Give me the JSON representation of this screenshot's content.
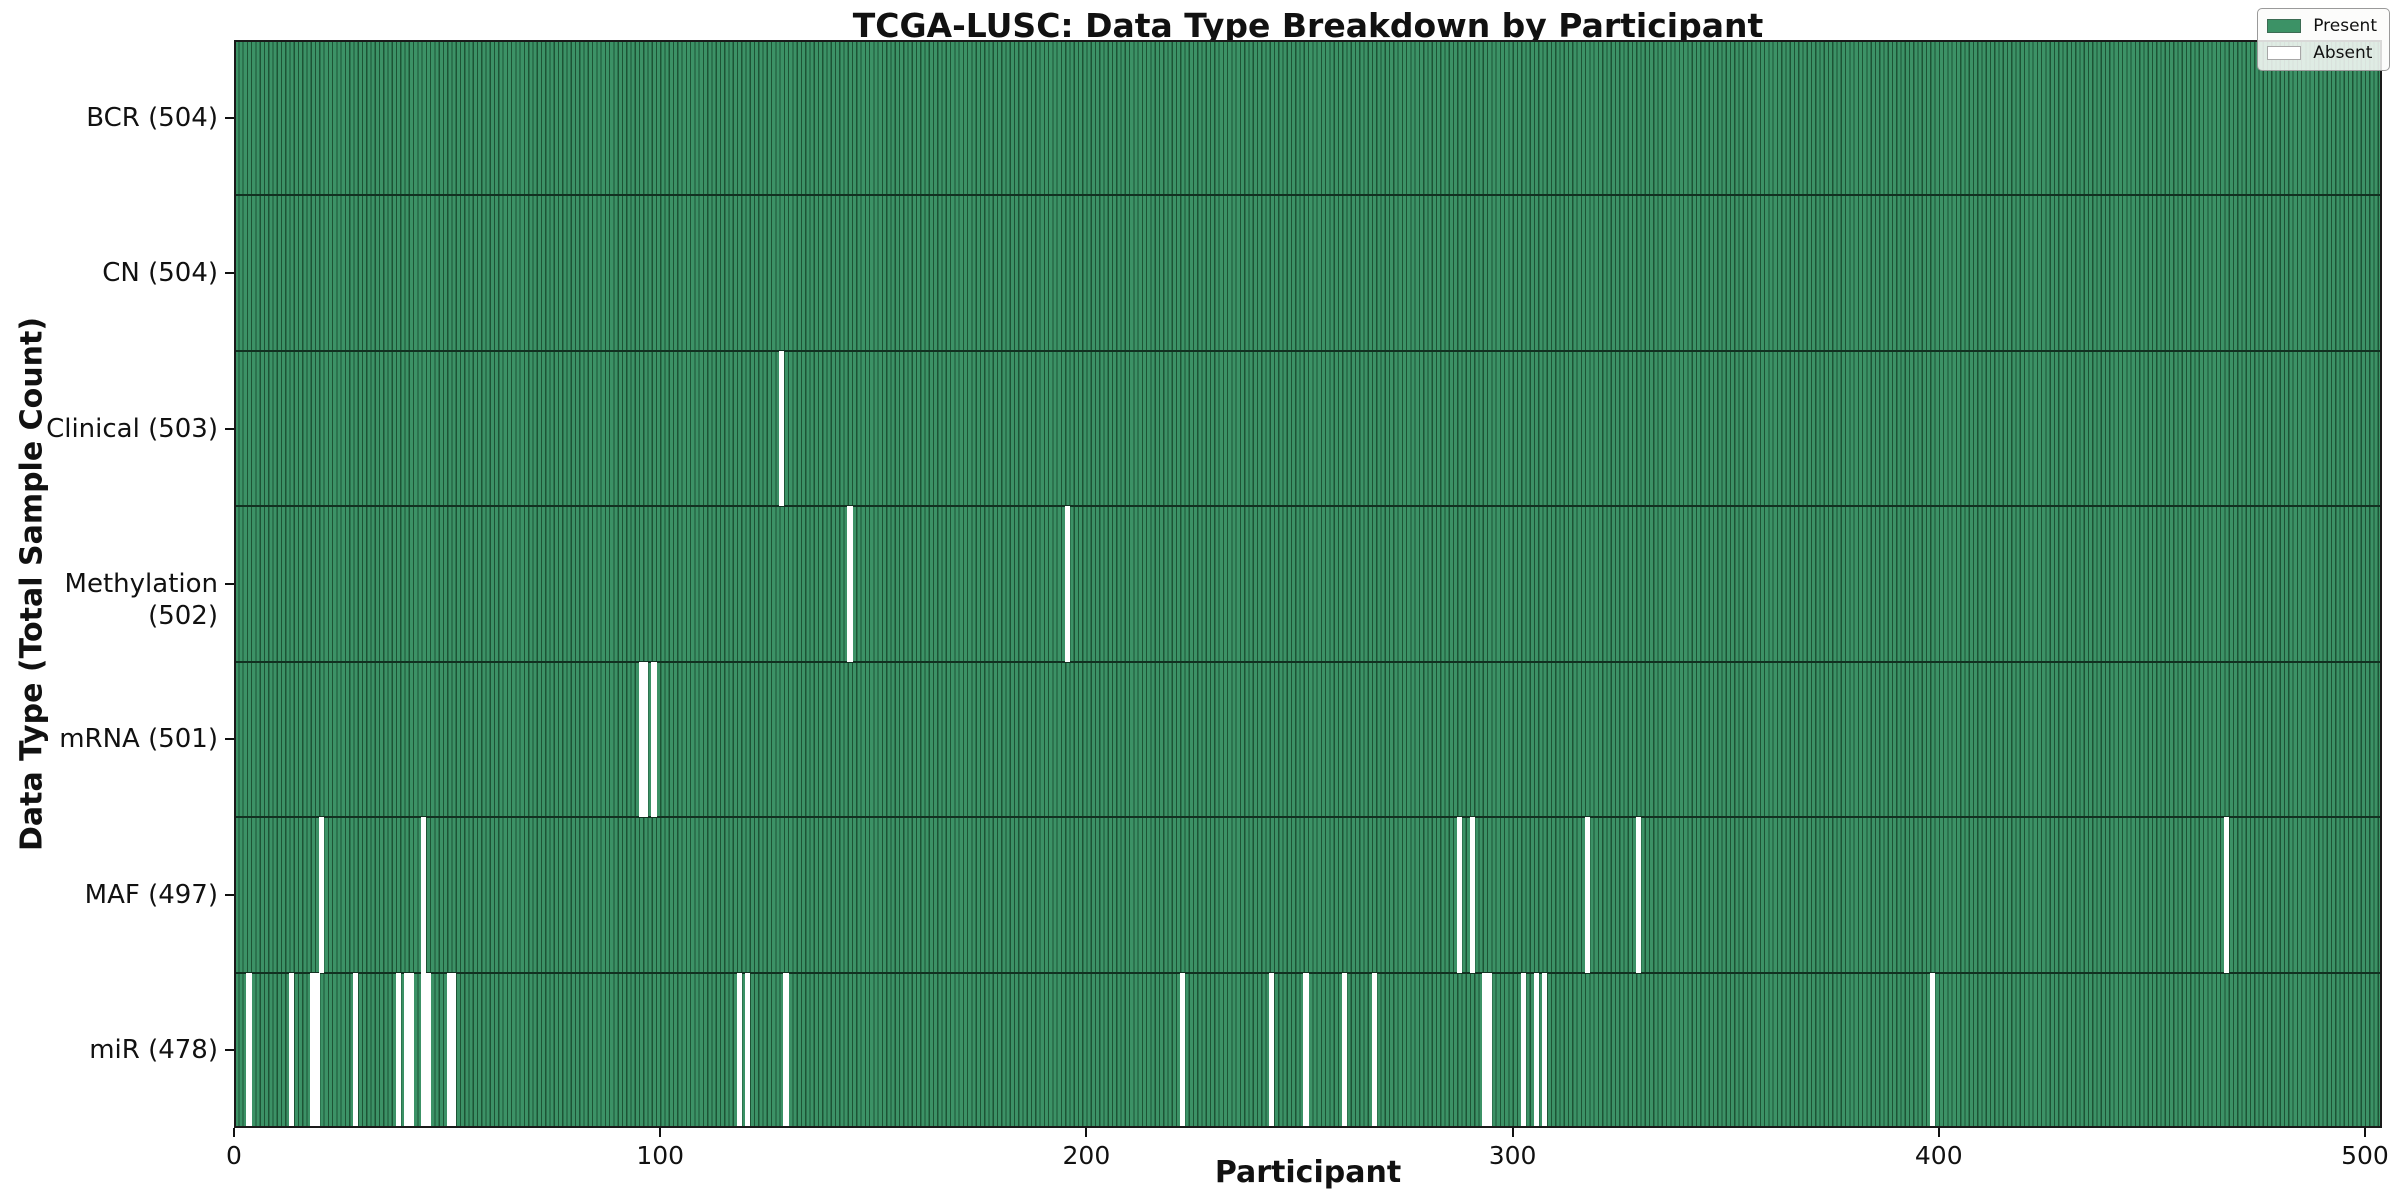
{
  "chart_data": {
    "type": "heatmap",
    "title": "TCGA-LUSC: Data Type Breakdown by Participant",
    "xlabel": "Participant",
    "ylabel": "Data Type (Total Sample Count)",
    "n_participants": 504,
    "xlim": [
      0,
      504
    ],
    "x_ticks": [
      0,
      100,
      200,
      300,
      400,
      500
    ],
    "grid": false,
    "legend_position": "upper right",
    "rows": [
      {
        "name": "bcr",
        "label": "BCR (504)",
        "present_count": 504,
        "absent_participants": []
      },
      {
        "name": "cn",
        "label": "CN (504)",
        "present_count": 504,
        "absent_participants": []
      },
      {
        "name": "clinical",
        "label": "Clinical (503)",
        "present_count": 503,
        "absent_participants": [
          128
        ]
      },
      {
        "name": "methylation",
        "label": "Methylation (502)",
        "present_count": 502,
        "absent_participants": [
          144,
          195
        ]
      },
      {
        "name": "mrna",
        "label": "mRNA (501)",
        "present_count": 501,
        "absent_participants": [
          95,
          96,
          98
        ]
      },
      {
        "name": "maf",
        "label": "MAF (497)",
        "present_count": 497,
        "absent_participants": [
          20,
          44,
          287,
          290,
          317,
          329,
          467
        ]
      },
      {
        "name": "mir",
        "label": "miR (478)",
        "present_count": 478,
        "absent_participants": [
          3,
          13,
          18,
          19,
          28,
          38,
          40,
          41,
          44,
          45,
          50,
          51,
          118,
          120,
          129,
          222,
          243,
          251,
          260,
          267,
          293,
          294,
          302,
          305,
          307,
          398
        ]
      }
    ],
    "legend": [
      {
        "label": "Present",
        "color": "#3c9266"
      },
      {
        "label": "Absent",
        "color": "#ffffff"
      }
    ],
    "colors": {
      "present_fill": "#3c9266",
      "bar_edge": "#1d5435",
      "absent_fill": "#ffffff",
      "row_separator": "#123121",
      "spine": "#1a1a1a",
      "text": "#111111"
    }
  }
}
